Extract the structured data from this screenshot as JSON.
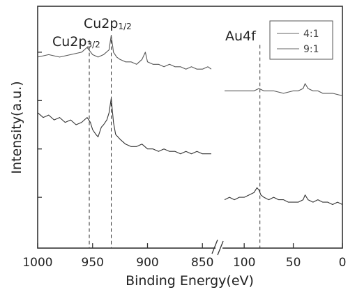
{
  "chart_data": {
    "type": "line",
    "xlabel": "Binding Energy(eV)",
    "ylabel": "Intensity(a.u.)",
    "x_axis_break": true,
    "x_tick_labels": [
      "1000",
      "950",
      "900",
      "850",
      "100",
      "50",
      "0"
    ],
    "left_segment_xlim": [
      1000,
      840
    ],
    "right_segment_xlim": [
      120,
      0
    ],
    "legend": {
      "position": "top-right",
      "entries": [
        "4:1",
        "9:1"
      ]
    },
    "annotations": [
      {
        "main": "Cu2p",
        "sub": "1/2",
        "x": 933
      },
      {
        "main": "Cu2p",
        "sub": "3/2",
        "x": 953
      },
      {
        "main": "Au4f",
        "sub": "",
        "x": 84
      }
    ],
    "series": [
      {
        "name": "4:1",
        "left": {
          "x": [
            1000,
            990,
            980,
            970,
            960,
            955,
            950,
            945,
            940,
            935,
            933,
            931,
            928,
            925,
            920,
            915,
            910,
            905,
            902,
            900,
            895,
            890,
            885,
            880,
            875,
            870,
            865,
            860,
            855,
            850,
            845,
            842
          ],
          "y": [
            0.79,
            0.8,
            0.79,
            0.8,
            0.81,
            0.83,
            0.8,
            0.79,
            0.8,
            0.82,
            0.88,
            0.81,
            0.79,
            0.78,
            0.77,
            0.77,
            0.76,
            0.78,
            0.81,
            0.77,
            0.76,
            0.76,
            0.75,
            0.76,
            0.75,
            0.75,
            0.74,
            0.75,
            0.74,
            0.74,
            0.75,
            0.74
          ]
        },
        "right": {
          "x": [
            120,
            110,
            100,
            90,
            85,
            80,
            70,
            60,
            50,
            45,
            40,
            38,
            35,
            30,
            25,
            20,
            10,
            0
          ],
          "y": [
            0.65,
            0.65,
            0.65,
            0.65,
            0.66,
            0.65,
            0.65,
            0.64,
            0.65,
            0.65,
            0.66,
            0.68,
            0.66,
            0.65,
            0.65,
            0.64,
            0.64,
            0.63
          ]
        }
      },
      {
        "name": "9:1",
        "left": {
          "x": [
            1000,
            995,
            990,
            985,
            980,
            975,
            970,
            965,
            960,
            955,
            952,
            950,
            947,
            945,
            942,
            940,
            937,
            935,
            933,
            931,
            929,
            925,
            920,
            915,
            910,
            905,
            900,
            895,
            890,
            885,
            880,
            875,
            870,
            865,
            860,
            855,
            850,
            845,
            842
          ],
          "y": [
            0.56,
            0.54,
            0.55,
            0.53,
            0.54,
            0.52,
            0.53,
            0.51,
            0.52,
            0.54,
            0.52,
            0.49,
            0.47,
            0.46,
            0.5,
            0.51,
            0.53,
            0.56,
            0.62,
            0.52,
            0.47,
            0.45,
            0.43,
            0.42,
            0.42,
            0.43,
            0.41,
            0.41,
            0.4,
            0.41,
            0.4,
            0.4,
            0.39,
            0.4,
            0.39,
            0.4,
            0.39,
            0.39,
            0.39
          ]
        },
        "right": {
          "x": [
            120,
            115,
            110,
            105,
            100,
            95,
            90,
            87,
            85,
            83,
            80,
            75,
            70,
            65,
            60,
            55,
            50,
            45,
            40,
            38,
            35,
            30,
            25,
            20,
            15,
            10,
            5,
            0
          ],
          "y": [
            0.2,
            0.21,
            0.2,
            0.21,
            0.21,
            0.22,
            0.23,
            0.25,
            0.24,
            0.22,
            0.21,
            0.2,
            0.21,
            0.2,
            0.2,
            0.19,
            0.19,
            0.19,
            0.2,
            0.22,
            0.2,
            0.19,
            0.2,
            0.19,
            0.19,
            0.18,
            0.19,
            0.18
          ]
        }
      }
    ]
  }
}
